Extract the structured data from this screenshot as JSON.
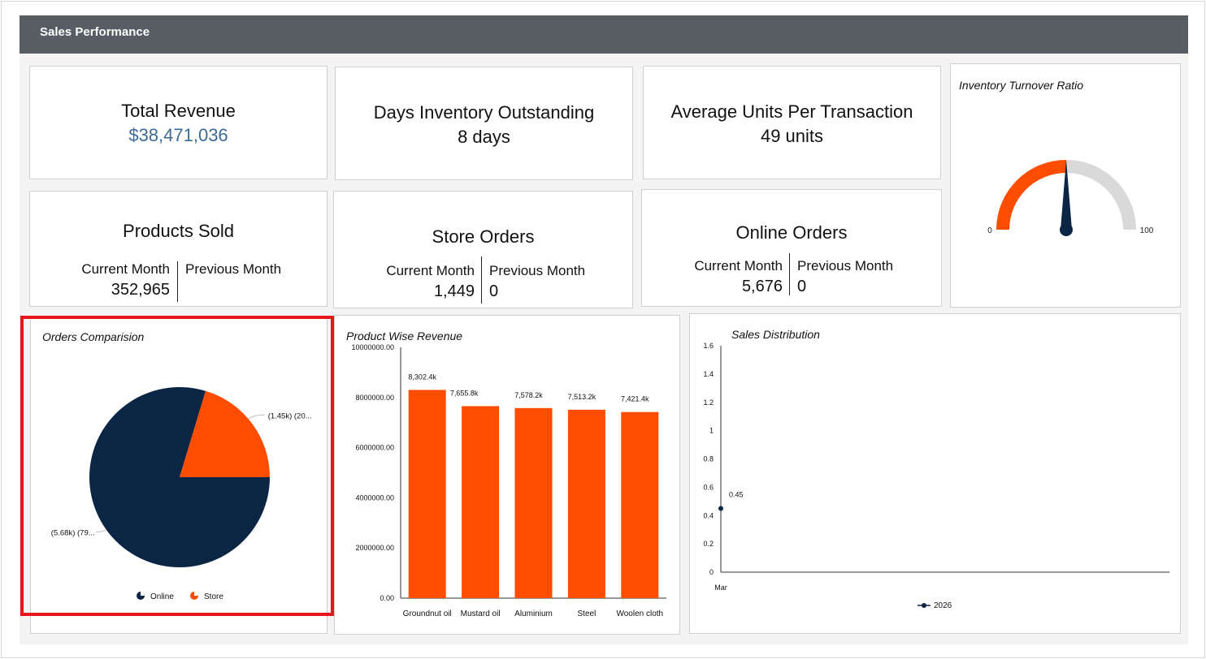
{
  "header": {
    "title": "Sales Performance"
  },
  "kpis": {
    "total_revenue": {
      "title": "Total Revenue",
      "value": "$38,471,036"
    },
    "dio": {
      "title": "Days Inventory Outstanding",
      "value": "8 days"
    },
    "aupt": {
      "title": "Average Units Per Transaction",
      "value": "49 units"
    }
  },
  "comparisons": {
    "products_sold": {
      "title": "Products Sold",
      "current_label": "Current Month",
      "previous_label": "Previous Month",
      "current": "352,965",
      "previous": ""
    },
    "store_orders": {
      "title": "Store Orders",
      "current_label": "Current Month",
      "previous_label": "Previous Month",
      "current": "1,449",
      "previous": "0"
    },
    "online_orders": {
      "title": "Online Orders",
      "current_label": "Current Month",
      "previous_label": "Previous Month",
      "current": "5,676",
      "previous": "0"
    }
  },
  "gauge": {
    "title": "Inventory Turnover Ratio",
    "min_label": "0",
    "max_label": "100",
    "min": 0,
    "max": 100,
    "value": 50,
    "colors": {
      "fill": "#ff4d00",
      "track": "#d9d9d9",
      "needle": "#0b2545"
    }
  },
  "chart_data": [
    {
      "type": "pie",
      "title": "Orders Comparision",
      "slices": [
        {
          "name": "Online",
          "value": 5676,
          "label": "(5.68k) (79...",
          "color": "#0b2545"
        },
        {
          "name": "Store",
          "value": 1449,
          "label": "(1.45k) (20...",
          "color": "#ff4d00"
        }
      ],
      "legend": "bottom"
    },
    {
      "type": "bar",
      "title": "Product Wise Revenue",
      "categories": [
        "Groundnut oil",
        "Mustard oil",
        "Aluminium",
        "Steel",
        "Woolen cloth"
      ],
      "values": [
        8302400,
        7655800,
        7578200,
        7513200,
        7421400
      ],
      "data_labels": [
        "8,302.4k",
        "7,655.8k",
        "7,578.2k",
        "7,513.2k",
        "7,421.4k"
      ],
      "yticks": [
        "0.00",
        "2000000.00",
        "4000000.00",
        "6000000.00",
        "8000000.00",
        "10000000.00"
      ],
      "ylim": [
        0,
        10000000
      ],
      "color": "#ff4d00"
    },
    {
      "type": "line",
      "title": "Sales Distribution",
      "categories": [
        "Mar"
      ],
      "series": [
        {
          "name": "2026",
          "values": [
            0.45
          ],
          "data_labels": [
            "0.45"
          ],
          "color": "#0b2545"
        }
      ],
      "yticks": [
        "0",
        "0.2",
        "0.4",
        "0.6",
        "0.8",
        "1",
        "1.2",
        "1.4",
        "1.6"
      ],
      "ylim": [
        0,
        1.6
      ],
      "legend": "bottom"
    }
  ]
}
